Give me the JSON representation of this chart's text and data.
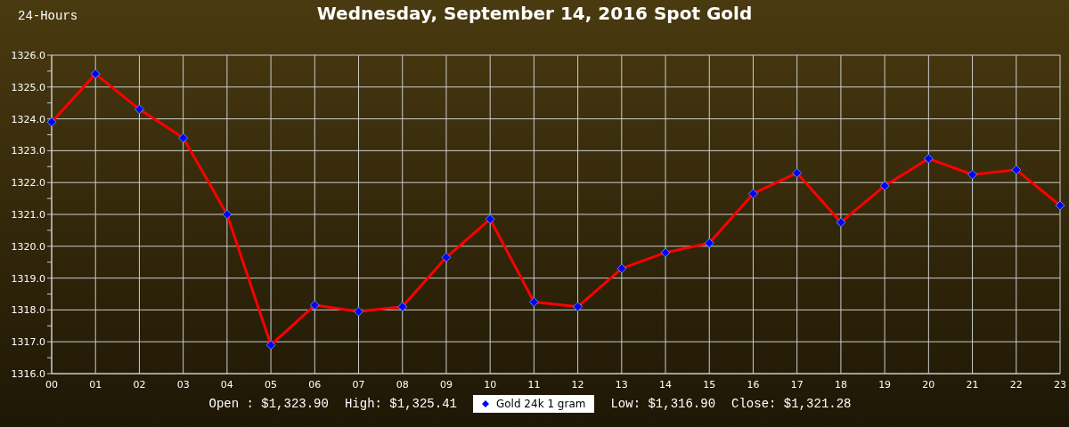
{
  "chart_data": {
    "type": "line",
    "title": "Wednesday, September 14, 2016 Spot Gold",
    "annotations": [
      "24-Hours",
      "Open : $1,323.90",
      "High: $1,325.41",
      "Low: $1,316.90",
      "Close: $1,321.28"
    ],
    "categories": [
      "00",
      "01",
      "02",
      "03",
      "04",
      "05",
      "06",
      "07",
      "08",
      "09",
      "10",
      "11",
      "12",
      "13",
      "14",
      "15",
      "16",
      "17",
      "18",
      "19",
      "20",
      "21",
      "22",
      "23"
    ],
    "series": [
      {
        "name": "Gold 24k 1 gram",
        "color": "#ff0000",
        "values": [
          1323.9,
          1325.41,
          1324.3,
          1323.4,
          1321.0,
          1316.9,
          1318.15,
          1317.95,
          1318.1,
          1319.65,
          1320.85,
          1318.25,
          1318.1,
          1319.3,
          1319.8,
          1320.1,
          1321.65,
          1322.3,
          1320.75,
          1321.9,
          1322.75,
          1322.25,
          1322.4,
          1321.28
        ]
      }
    ],
    "ylim": [
      1316,
      1326
    ],
    "yticks": [
      {
        "value": 1316,
        "label": "1316.0"
      },
      {
        "value": 1316.5,
        "label": null
      },
      {
        "value": 1317,
        "label": "1317.0"
      },
      {
        "value": 1317.5,
        "label": null
      },
      {
        "value": 1318,
        "label": "1318.0"
      },
      {
        "value": 1318.5,
        "label": null
      },
      {
        "value": 1319,
        "label": "1319.0"
      },
      {
        "value": 1319.5,
        "label": null
      },
      {
        "value": 1320,
        "label": "1320.0"
      },
      {
        "value": 1320.5,
        "label": null
      },
      {
        "value": 1321,
        "label": "1321.0"
      },
      {
        "value": 1321.5,
        "label": null
      },
      {
        "value": 1322,
        "label": "1322.0"
      },
      {
        "value": 1322.5,
        "label": null
      },
      {
        "value": 1323,
        "label": "1323.0"
      },
      {
        "value": 1323.5,
        "label": null
      },
      {
        "value": 1324,
        "label": "1324.0"
      },
      {
        "value": 1324.5,
        "label": null
      },
      {
        "value": 1325,
        "label": "1325.0"
      },
      {
        "value": 1325.5,
        "label": null
      },
      {
        "value": 1326,
        "label": "1326.0"
      }
    ],
    "grid": true,
    "legend": "bottom",
    "marker": "diamond",
    "line_style": "solid"
  }
}
